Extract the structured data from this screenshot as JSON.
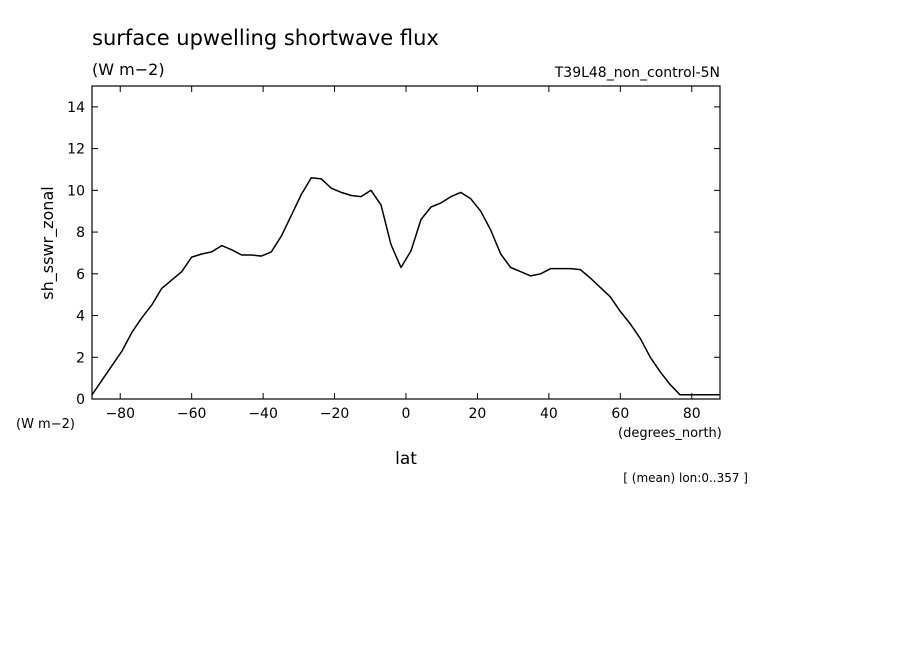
{
  "header": {
    "title": "surface upwelling shortwave flux",
    "units": "(W m−2)",
    "run_label": "T39L48_non_control-5N",
    "y_units": "(W m−2)",
    "x_units": "(degrees_north)",
    "footnote": "[ (mean) lon:0..357 ]"
  },
  "chart_data": {
    "type": "line",
    "xlabel": "lat",
    "ylabel": "sh_sswr_zonal",
    "xlim": [
      -87.9,
      87.9
    ],
    "ylim": [
      0,
      15
    ],
    "xticks": [
      -80,
      -60,
      -40,
      -20,
      0,
      20,
      40,
      60,
      80
    ],
    "xtick_labels": [
      "−80",
      "−60",
      "−40",
      "−20",
      "0",
      "20",
      "40",
      "60",
      "80"
    ],
    "yticks": [
      0,
      2,
      4,
      6,
      8,
      10,
      12,
      14
    ],
    "ytick_labels": [
      "0",
      "2",
      "4",
      "6",
      "8",
      "10",
      "12",
      "14"
    ],
    "grid": false,
    "series": [
      {
        "x": [
          -87.9,
          -85.1,
          -82.3,
          -79.5,
          -76.7,
          -73.9,
          -71.2,
          -68.4,
          -65.6,
          -62.8,
          -60.0,
          -57.2,
          -54.4,
          -51.6,
          -48.8,
          -46.0,
          -43.3,
          -40.5,
          -37.7,
          -34.9,
          -32.1,
          -29.3,
          -26.5,
          -23.7,
          -20.9,
          -18.1,
          -15.3,
          -12.6,
          -9.8,
          -7.0,
          -4.2,
          -1.4,
          1.4,
          4.2,
          7.0,
          9.8,
          12.6,
          15.3,
          18.1,
          20.9,
          23.7,
          26.5,
          29.3,
          32.1,
          34.9,
          37.7,
          40.5,
          43.3,
          46.0,
          48.8,
          51.6,
          54.4,
          57.2,
          60.0,
          62.8,
          65.6,
          68.4,
          71.2,
          73.9,
          76.7,
          79.5,
          82.3,
          85.1,
          87.9
        ],
        "values": [
          0.2,
          0.9,
          1.6,
          2.3,
          3.2,
          3.9,
          4.5,
          5.3,
          5.7,
          6.1,
          6.8,
          6.95,
          7.05,
          7.35,
          7.15,
          6.9,
          6.9,
          6.85,
          7.05,
          7.8,
          8.8,
          9.8,
          10.6,
          10.55,
          10.1,
          9.9,
          9.75,
          9.7,
          10.0,
          9.3,
          7.4,
          6.3,
          7.1,
          8.6,
          9.2,
          9.4,
          9.7,
          9.9,
          9.6,
          9.0,
          8.1,
          6.95,
          6.3,
          6.1,
          5.9,
          6.0,
          6.25,
          6.25,
          6.25,
          6.2,
          5.8,
          5.35,
          4.9,
          4.2,
          3.6,
          2.9,
          2.0,
          1.3,
          0.7,
          0.2,
          0.2,
          0.2,
          0.2,
          0.2
        ]
      }
    ]
  }
}
